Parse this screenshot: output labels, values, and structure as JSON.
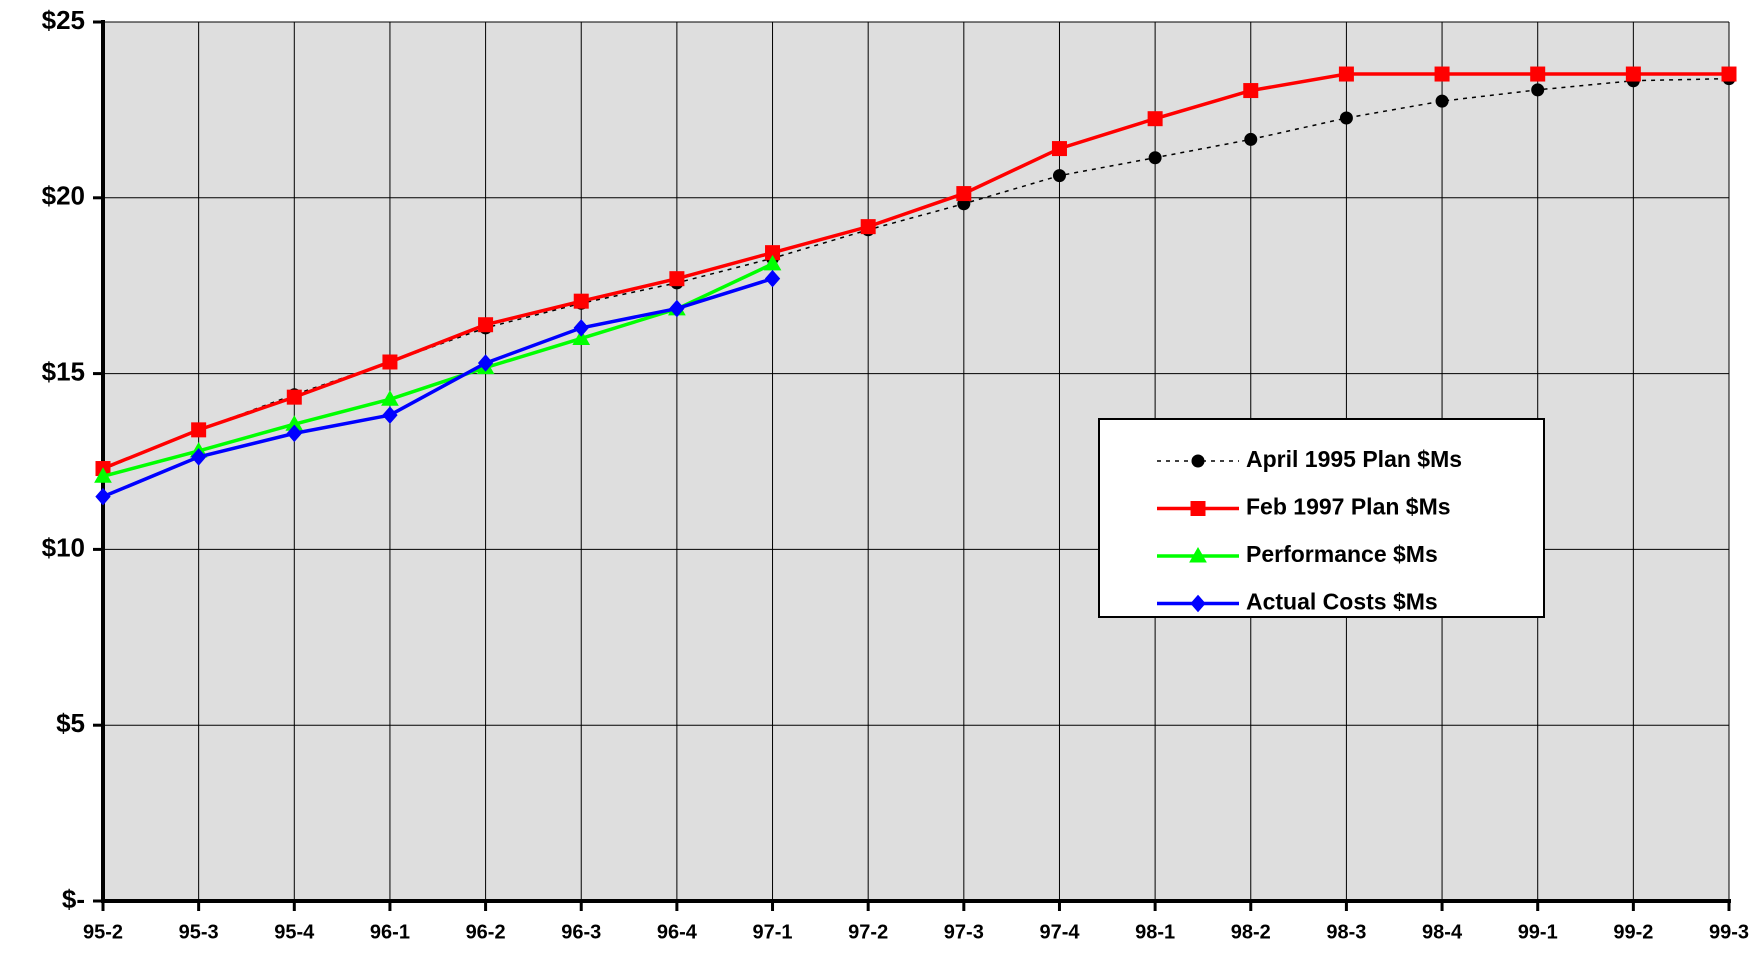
{
  "chart_data": {
    "type": "line",
    "categories": [
      "95-2",
      "95-3",
      "95-4",
      "96-1",
      "96-2",
      "96-3",
      "96-4",
      "97-1",
      "97-2",
      "97-3",
      "97-4",
      "98-1",
      "98-2",
      "98-3",
      "98-4",
      "99-1",
      "99-2",
      "99-3"
    ],
    "ylim": [
      0,
      25
    ],
    "yticks": [
      {
        "value": 0,
        "label": "$-"
      },
      {
        "value": 5,
        "label": "$5"
      },
      {
        "value": 10,
        "label": "$10"
      },
      {
        "value": 15,
        "label": "$15"
      },
      {
        "value": 20,
        "label": "$20"
      },
      {
        "value": 25,
        "label": "$25"
      }
    ],
    "grid": true,
    "legend": "right",
    "series": [
      {
        "name": "April 1995 Plan $Ms",
        "color": "#000000",
        "marker": "circle",
        "dash": "dotted",
        "values": [
          12.27,
          13.4,
          14.4,
          15.33,
          16.3,
          17.0,
          17.58,
          18.28,
          19.09,
          19.83,
          20.63,
          21.14,
          21.66,
          22.27,
          22.75,
          23.07,
          23.33,
          23.39
        ]
      },
      {
        "name": "Feb 1997 Plan $Ms",
        "color": "#ff0000",
        "marker": "square",
        "dash": "solid",
        "values": [
          12.3,
          13.4,
          14.33,
          15.33,
          16.39,
          17.06,
          17.7,
          18.44,
          19.18,
          20.12,
          21.4,
          22.25,
          23.05,
          23.52,
          23.52,
          23.52,
          23.52,
          23.52
        ]
      },
      {
        "name": "Performance $Ms",
        "color": "#00ff00",
        "marker": "triangle",
        "dash": "solid",
        "values": [
          12.08,
          12.8,
          13.56,
          14.27,
          15.17,
          16.0,
          16.84,
          18.12,
          null,
          null,
          null,
          null,
          null,
          null,
          null,
          null,
          null,
          null
        ]
      },
      {
        "name": "Actual Costs $Ms",
        "color": "#0000ff",
        "marker": "diamond",
        "dash": "solid",
        "values": [
          11.5,
          12.63,
          13.3,
          13.82,
          15.3,
          16.3,
          16.85,
          17.7,
          null,
          null,
          null,
          null,
          null,
          null,
          null,
          null,
          null,
          null
        ]
      }
    ]
  }
}
